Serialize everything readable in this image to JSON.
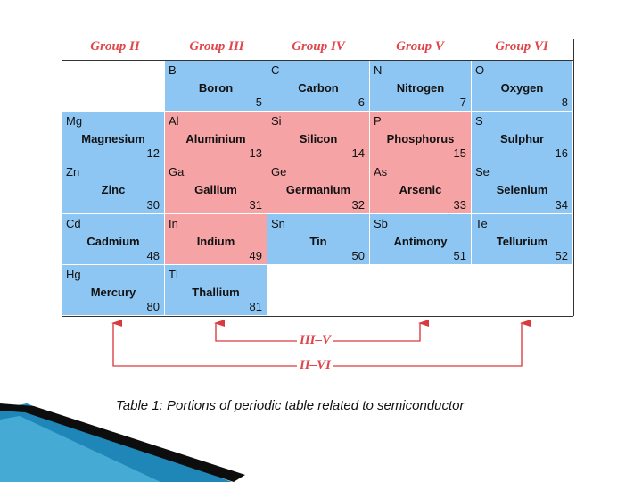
{
  "colors": {
    "blue_cell": "#8ec6f3",
    "pink_cell": "#f5a3a5",
    "header_red": "#e0454a",
    "arrow_red": "#d93a3f",
    "deco_blue": "#1f86b8",
    "deco_black": "#0d0d0d"
  },
  "column_headers": [
    "Group II",
    "Group III",
    "Group IV",
    "Group V",
    "Group VI"
  ],
  "rows": [
    [
      null,
      {
        "symbol": "B",
        "name": "Boron",
        "number": "5",
        "color": "blue"
      },
      {
        "symbol": "C",
        "name": "Carbon",
        "number": "6",
        "color": "blue"
      },
      {
        "symbol": "N",
        "name": "Nitrogen",
        "number": "7",
        "color": "blue"
      },
      {
        "symbol": "O",
        "name": "Oxygen",
        "number": "8",
        "color": "blue"
      }
    ],
    [
      {
        "symbol": "Mg",
        "name": "Magnesium",
        "number": "12",
        "color": "blue"
      },
      {
        "symbol": "Al",
        "name": "Aluminium",
        "number": "13",
        "color": "pink"
      },
      {
        "symbol": "Si",
        "name": "Silicon",
        "number": "14",
        "color": "pink"
      },
      {
        "symbol": "P",
        "name": "Phosphorus",
        "number": "15",
        "color": "pink"
      },
      {
        "symbol": "S",
        "name": "Sulphur",
        "number": "16",
        "color": "blue"
      }
    ],
    [
      {
        "symbol": "Zn",
        "name": "Zinc",
        "number": "30",
        "color": "blue"
      },
      {
        "symbol": "Ga",
        "name": "Gallium",
        "number": "31",
        "color": "pink"
      },
      {
        "symbol": "Ge",
        "name": "Germanium",
        "number": "32",
        "color": "pink"
      },
      {
        "symbol": "As",
        "name": "Arsenic",
        "number": "33",
        "color": "pink"
      },
      {
        "symbol": "Se",
        "name": "Selenium",
        "number": "34",
        "color": "blue"
      }
    ],
    [
      {
        "symbol": "Cd",
        "name": "Cadmium",
        "number": "48",
        "color": "blue"
      },
      {
        "symbol": "In",
        "name": "Indium",
        "number": "49",
        "color": "pink"
      },
      {
        "symbol": "Sn",
        "name": "Tin",
        "number": "50",
        "color": "blue"
      },
      {
        "symbol": "Sb",
        "name": "Antimony",
        "number": "51",
        "color": "blue"
      },
      {
        "symbol": "Te",
        "name": "Tellurium",
        "number": "52",
        "color": "blue"
      }
    ],
    [
      {
        "symbol": "Hg",
        "name": "Mercury",
        "number": "80",
        "color": "blue"
      },
      {
        "symbol": "Tl",
        "name": "Thallium",
        "number": "81",
        "color": "blue"
      },
      null,
      null,
      null
    ]
  ],
  "pair_labels": {
    "iii_v": "III–V",
    "ii_vi": "II–VI"
  },
  "caption": "Table 1: Portions of periodic table related to semiconductor"
}
